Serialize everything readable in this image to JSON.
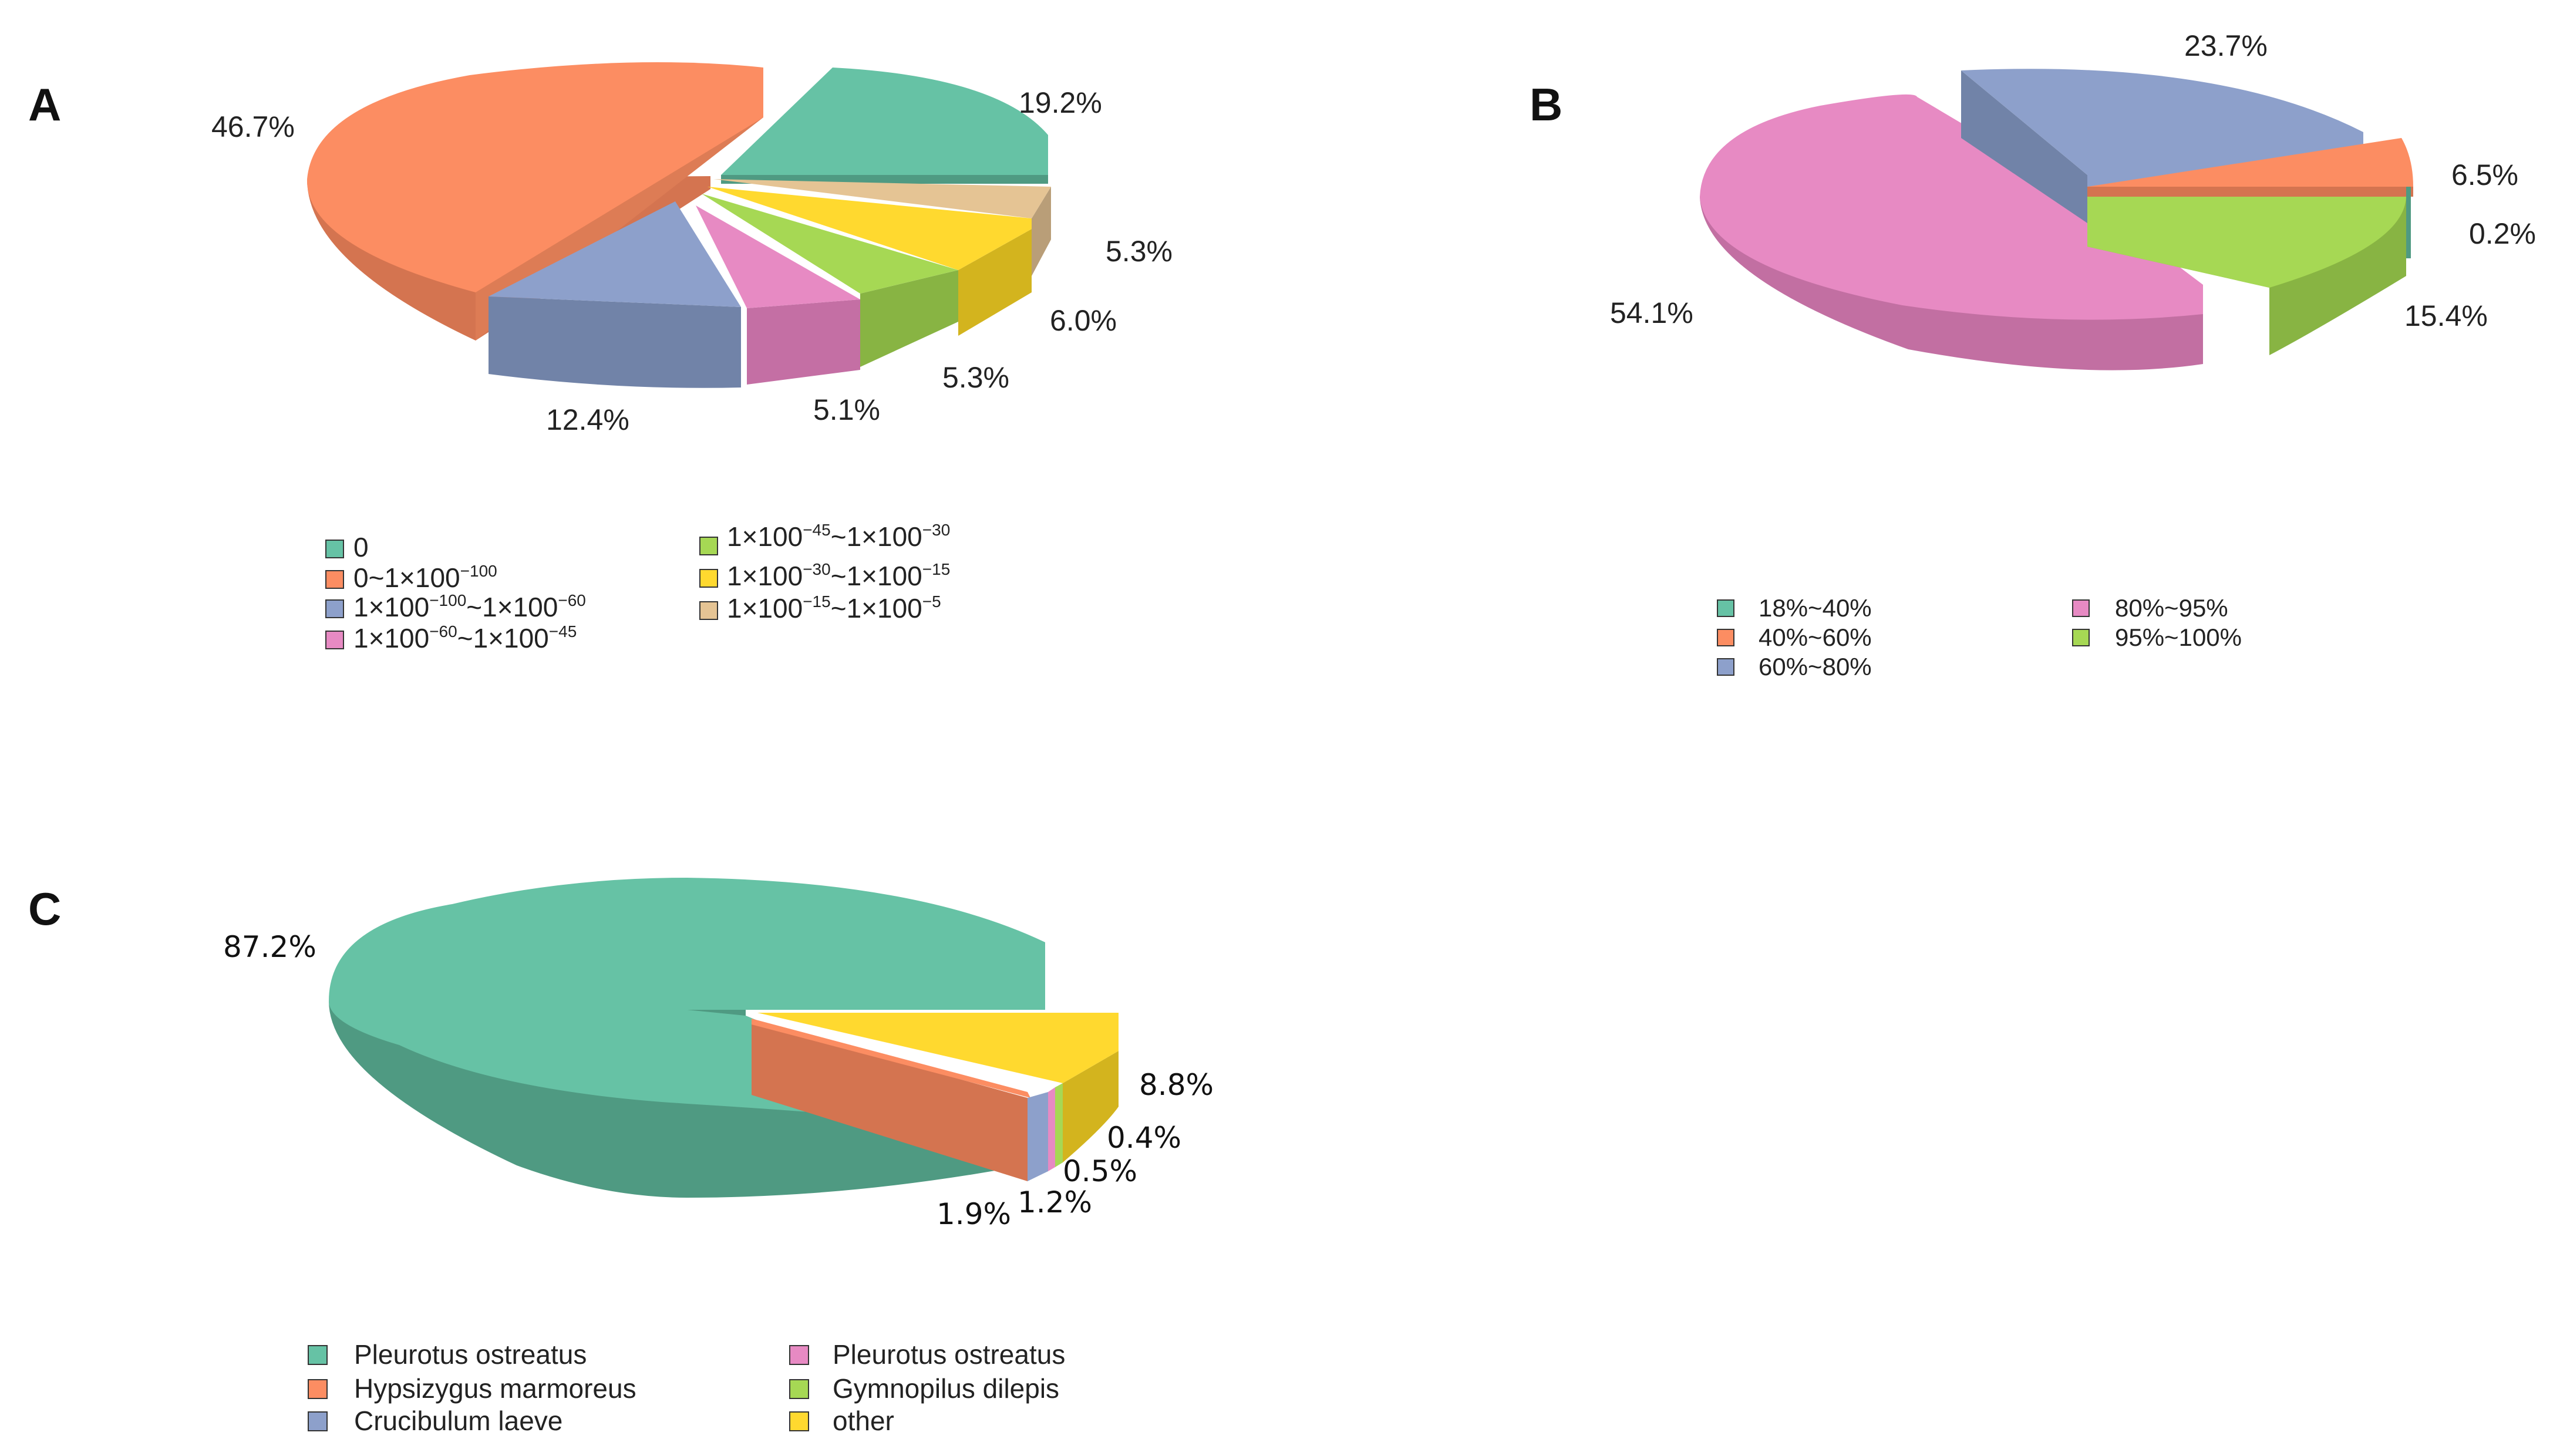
{
  "chart_data": [
    {
      "panel": "A",
      "type": "pie",
      "style": "3d-exploded",
      "categories": [
        "0",
        "0~1×100^-100",
        "1×100^-100~1×100^-60",
        "1×100^-60~1×100^-45",
        "1×100^-45~1×100^-30",
        "1×100^-30~1×100^-15",
        "1×100^-15~1×100^-5"
      ],
      "values": [
        19.2,
        46.7,
        12.4,
        5.1,
        5.3,
        6.0,
        5.3
      ],
      "labels": [
        "19.2%",
        "46.7%",
        "12.4%",
        "5.1%",
        "5.3%",
        "6.0%",
        "5.3%"
      ],
      "colors": [
        "#66c2a5",
        "#fc8d62",
        "#8da0cb",
        "#e78ac3",
        "#a6d854",
        "#ffd92f",
        "#e5c494"
      ],
      "legend": [
        {
          "base": "0",
          "parts": []
        },
        {
          "base": "0~1×100",
          "parts": [
            [
              "-100",
              ""
            ]
          ]
        },
        {
          "base": "1×100",
          "parts": [
            [
              "-100",
              "~1×100"
            ],
            [
              "-60",
              ""
            ]
          ]
        },
        {
          "base": "1×100",
          "parts": [
            [
              "-60",
              "~1×100"
            ],
            [
              "-45",
              ""
            ]
          ]
        },
        {
          "base": "1×100",
          "parts": [
            [
              "-45",
              "~1×100"
            ],
            [
              "-30",
              ""
            ]
          ]
        },
        {
          "base": "1×100",
          "parts": [
            [
              "-30",
              "~1×100"
            ],
            [
              "-15",
              ""
            ]
          ]
        },
        {
          "base": "1×100",
          "parts": [
            [
              "-15",
              "~1×100"
            ],
            [
              "-5",
              ""
            ]
          ]
        }
      ],
      "legend_position": "bottom"
    },
    {
      "panel": "B",
      "type": "pie",
      "style": "3d-exploded",
      "categories": [
        "18%~40%",
        "40%~60%",
        "60%~80%",
        "80%~95%",
        "95%~100%"
      ],
      "values": [
        0.2,
        6.5,
        23.7,
        54.1,
        15.4
      ],
      "labels": [
        "0.2%",
        "6.5%",
        "23.7%",
        "54.1%",
        "15.4%"
      ],
      "colors": [
        "#66c2a5",
        "#fc8d62",
        "#8da0cb",
        "#e78ac3",
        "#a6d854"
      ],
      "legend_position": "bottom"
    },
    {
      "panel": "C",
      "type": "pie",
      "style": "3d-exploded",
      "categories": [
        "Pleurotus ostreatus",
        "Hypsizygus marmoreus",
        "Crucibulum laeve",
        "Pleurotus ostreatus",
        "Gymnopilus dilepis",
        "other"
      ],
      "values": [
        87.2,
        1.9,
        1.2,
        0.5,
        0.4,
        8.8
      ],
      "labels": [
        "87.2%",
        "1.9%",
        "1.2%",
        "0.5%",
        "0.4%",
        "8.8%"
      ],
      "colors": [
        "#66c2a5",
        "#fc8d62",
        "#8da0cb",
        "#e78ac3",
        "#a6d854",
        "#ffd92f"
      ],
      "legend_position": "bottom"
    }
  ]
}
